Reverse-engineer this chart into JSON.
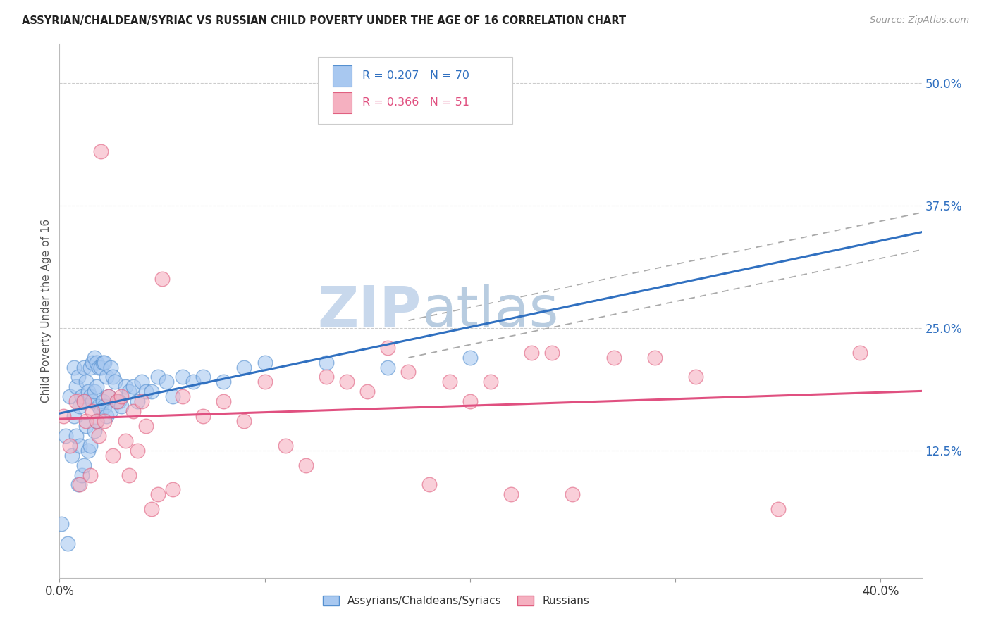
{
  "title": "ASSYRIAN/CHALDEAN/SYRIAC VS RUSSIAN CHILD POVERTY UNDER THE AGE OF 16 CORRELATION CHART",
  "source": "Source: ZipAtlas.com",
  "ylabel": "Child Poverty Under the Age of 16",
  "xlim": [
    0.0,
    0.42
  ],
  "ylim": [
    -0.005,
    0.54
  ],
  "yticks": [
    0.125,
    0.25,
    0.375,
    0.5
  ],
  "ytick_labels": [
    "12.5%",
    "25.0%",
    "37.5%",
    "50.0%"
  ],
  "xticks": [
    0.0,
    0.1,
    0.2,
    0.3,
    0.4
  ],
  "xtick_labels": [
    "0.0%",
    "",
    "",
    "",
    "40.0%"
  ],
  "blue_color": "#a8c8f0",
  "pink_color": "#f5b0c0",
  "blue_edge_color": "#5590d0",
  "pink_edge_color": "#e06080",
  "blue_line_color": "#3070c0",
  "pink_line_color": "#e05080",
  "tick_label_color": "#3070c0",
  "watermark_color": "#c8d8ec",
  "blue_R": 0.207,
  "blue_N": 70,
  "pink_R": 0.366,
  "pink_N": 51,
  "legend_label_blue": "Assyrians/Chaldeans/Syriacs",
  "legend_label_pink": "Russians",
  "blue_scatter_x": [
    0.001,
    0.003,
    0.004,
    0.005,
    0.006,
    0.007,
    0.007,
    0.008,
    0.008,
    0.009,
    0.009,
    0.01,
    0.01,
    0.011,
    0.011,
    0.012,
    0.012,
    0.012,
    0.013,
    0.013,
    0.014,
    0.014,
    0.015,
    0.015,
    0.015,
    0.016,
    0.016,
    0.017,
    0.017,
    0.017,
    0.018,
    0.018,
    0.018,
    0.019,
    0.019,
    0.02,
    0.02,
    0.021,
    0.021,
    0.022,
    0.022,
    0.023,
    0.023,
    0.024,
    0.025,
    0.025,
    0.026,
    0.027,
    0.028,
    0.029,
    0.03,
    0.032,
    0.034,
    0.036,
    0.038,
    0.04,
    0.042,
    0.045,
    0.048,
    0.052,
    0.055,
    0.06,
    0.065,
    0.07,
    0.08,
    0.09,
    0.1,
    0.13,
    0.16,
    0.2
  ],
  "blue_scatter_y": [
    0.05,
    0.14,
    0.03,
    0.18,
    0.12,
    0.21,
    0.16,
    0.19,
    0.14,
    0.2,
    0.09,
    0.17,
    0.13,
    0.18,
    0.1,
    0.21,
    0.175,
    0.11,
    0.195,
    0.15,
    0.185,
    0.125,
    0.21,
    0.18,
    0.13,
    0.215,
    0.175,
    0.22,
    0.185,
    0.145,
    0.215,
    0.19,
    0.155,
    0.21,
    0.17,
    0.21,
    0.165,
    0.215,
    0.175,
    0.215,
    0.17,
    0.2,
    0.16,
    0.18,
    0.21,
    0.165,
    0.2,
    0.195,
    0.175,
    0.175,
    0.17,
    0.19,
    0.185,
    0.19,
    0.175,
    0.195,
    0.185,
    0.185,
    0.2,
    0.195,
    0.18,
    0.2,
    0.195,
    0.2,
    0.195,
    0.21,
    0.215,
    0.215,
    0.21,
    0.22
  ],
  "pink_scatter_x": [
    0.002,
    0.005,
    0.008,
    0.01,
    0.012,
    0.013,
    0.015,
    0.016,
    0.018,
    0.019,
    0.02,
    0.022,
    0.024,
    0.026,
    0.028,
    0.03,
    0.032,
    0.034,
    0.036,
    0.038,
    0.04,
    0.042,
    0.045,
    0.048,
    0.05,
    0.055,
    0.06,
    0.07,
    0.08,
    0.09,
    0.1,
    0.11,
    0.12,
    0.13,
    0.14,
    0.15,
    0.16,
    0.17,
    0.18,
    0.19,
    0.2,
    0.21,
    0.22,
    0.23,
    0.24,
    0.25,
    0.27,
    0.29,
    0.31,
    0.35,
    0.39
  ],
  "pink_scatter_y": [
    0.16,
    0.13,
    0.175,
    0.09,
    0.175,
    0.155,
    0.1,
    0.165,
    0.155,
    0.14,
    0.43,
    0.155,
    0.18,
    0.12,
    0.175,
    0.18,
    0.135,
    0.1,
    0.165,
    0.125,
    0.175,
    0.15,
    0.065,
    0.08,
    0.3,
    0.085,
    0.18,
    0.16,
    0.175,
    0.155,
    0.195,
    0.13,
    0.11,
    0.2,
    0.195,
    0.185,
    0.23,
    0.205,
    0.09,
    0.195,
    0.175,
    0.195,
    0.08,
    0.225,
    0.225,
    0.08,
    0.22,
    0.22,
    0.2,
    0.065,
    0.225
  ]
}
